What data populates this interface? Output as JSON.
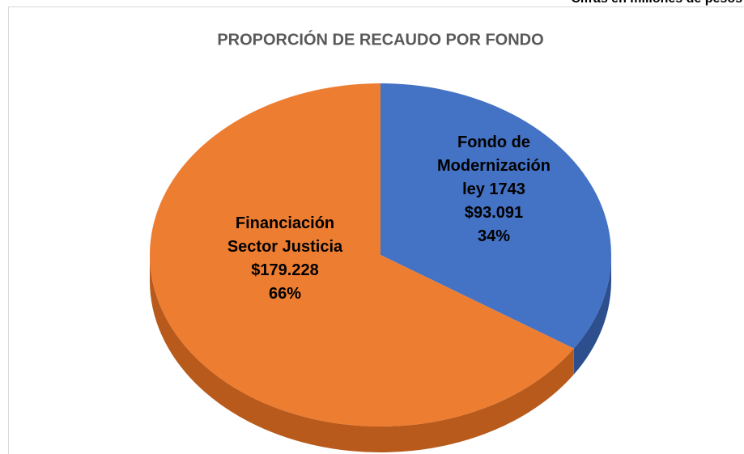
{
  "chart_data": {
    "type": "pie3d",
    "title": "PROPORCIÓN DE RECAUDO POR FONDO",
    "note": "Cifras en millones de pesos",
    "categories": [
      "Fondo de Modernización ley 1743",
      "Financiación Sector Justicia"
    ],
    "values": [
      93091,
      179228
    ],
    "value_labels": [
      "$93.091",
      "$179.228"
    ],
    "percentages": [
      34,
      66
    ],
    "percentage_labels": [
      "34%",
      "66%"
    ],
    "colors": [
      "#4472c4",
      "#ed7d31"
    ],
    "side_colors": [
      "#2d4f8e",
      "#b85a1c"
    ]
  }
}
